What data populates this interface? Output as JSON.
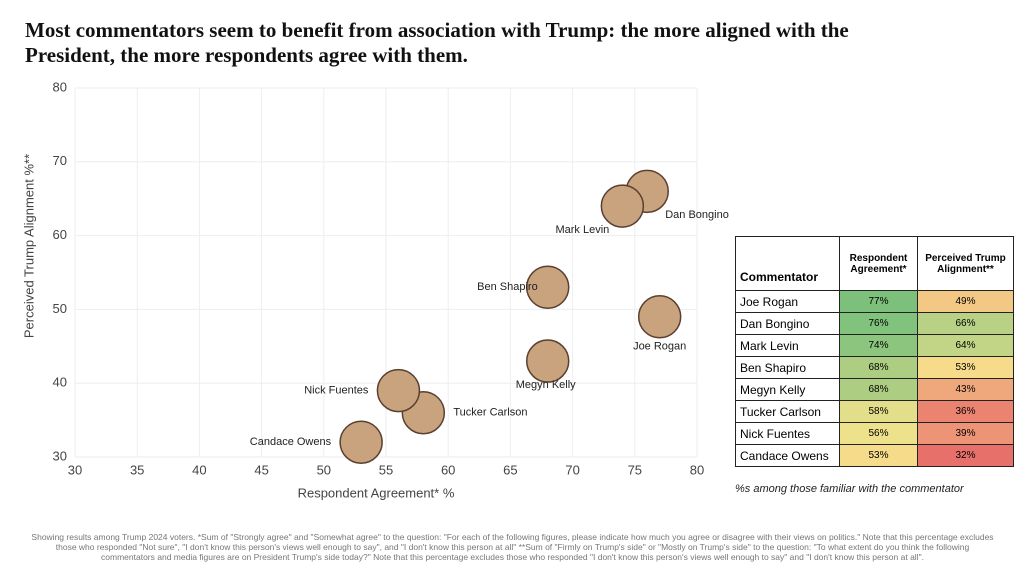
{
  "chart_data": {
    "type": "scatter",
    "title": "Most commentators seem to benefit from association with Trump: the more aligned with the President, the more respondents agree with them.",
    "x_label": "Respondent Agreement* %",
    "y_label": "Perceived Trump Alignment %**",
    "xlim": [
      30,
      80
    ],
    "ylim": [
      30,
      80
    ],
    "xticks": [
      30,
      35,
      40,
      45,
      50,
      55,
      60,
      65,
      70,
      75,
      80
    ],
    "yticks": [
      30,
      40,
      50,
      60,
      70,
      80
    ],
    "labels": [
      "Joe Rogan",
      "Dan Bongino",
      "Mark Levin",
      "Ben Shapiro",
      "Megyn Kelly",
      "Tucker Carlson",
      "Nick Fuentes",
      "Candace Owens"
    ],
    "x": [
      77,
      76,
      74,
      68,
      68,
      58,
      56,
      53
    ],
    "y": [
      49,
      66,
      64,
      53,
      43,
      36,
      39,
      32
    ],
    "x_value_labels": [
      "77%",
      "76%",
      "74%",
      "68%",
      "68%",
      "58%",
      "56%",
      "53%"
    ],
    "y_value_labels": [
      "49%",
      "66%",
      "64%",
      "53%",
      "43%",
      "36%",
      "39%",
      "32%"
    ],
    "color": "#c9a27e"
  },
  "table": {
    "headers": [
      "Commentator",
      "Respondent Agreement*",
      "Perceived Trump Alignment**"
    ],
    "note": "%s among those familiar with the commentator"
  },
  "footnote": "Showing results among Trump 2024 voters. *Sum of \"Strongly agree\" and \"Somewhat agree\" to the question: \"For each of the following figures, please indicate how much you agree or disagree with their views on politics.\" Note that this percentage excludes those who responded \"Not sure\", \"I don't know this person's views well enough to say\", and \"I don't know this person at all\" **Sum of \"Firmly on Trump's side\" or \"Mostly on Trump's side\" to the question: \"To what extent do you think the following commentators and media figures are on President Trump's side today?\" Note that this percentage excludes those who responded \"I don't know this person's views well enough to say\" and \"I don't know this person at all\"."
}
